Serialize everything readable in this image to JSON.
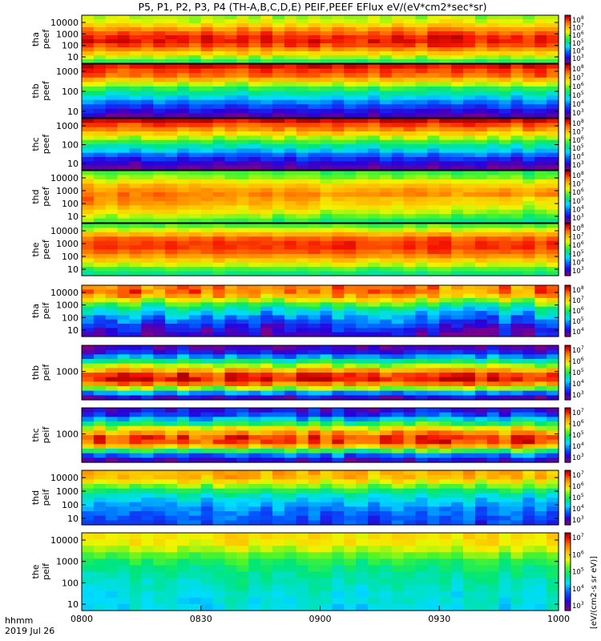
{
  "title": "P5, P1, P2, P3, P4 (TH-A,B,C,D,E) PEIF,PEEF EFlux eV/(eV*cm2*sec*sr)",
  "time_axis": {
    "hhmm_label": "hhmm",
    "date_label": "2019 Jul 26",
    "ticks": [
      "0800",
      "0830",
      "0900",
      "0930",
      "1000"
    ]
  },
  "colorbar_label": "[eV/(cm2-s sr eV)]",
  "chart_data": {
    "type": "heatmap",
    "x_range": [
      "0800",
      "1000"
    ],
    "panels": [
      {
        "ylabel": [
          "tha",
          "peef"
        ],
        "yticks": [
          "10000",
          "1000",
          "100",
          "10"
        ],
        "cb_exp": [
          3,
          4,
          5,
          6,
          7,
          8
        ],
        "profile": [
          0.62,
          0.66,
          0.74,
          0.84,
          0.9,
          0.96,
          0.93,
          0.85,
          0.74,
          0.62,
          0.52
        ],
        "t_amp": 0.05,
        "seed": 11
      },
      {
        "ylabel": [
          "thb",
          "peef"
        ],
        "yticks": [
          "1000",
          "100",
          "10"
        ],
        "cb_exp": [
          3,
          4,
          5,
          6,
          7,
          8
        ],
        "profile": [
          0.96,
          0.9,
          0.86,
          0.72,
          0.58,
          0.46,
          0.38,
          0.28,
          0.2,
          0.12,
          0.06
        ],
        "t_amp": 0.05,
        "seed": 23
      },
      {
        "ylabel": [
          "thc",
          "peef"
        ],
        "yticks": [
          "1000",
          "100",
          "10"
        ],
        "cb_exp": [
          3,
          4,
          5,
          6,
          7,
          8
        ],
        "profile": [
          0.97,
          0.88,
          0.8,
          0.68,
          0.57,
          0.46,
          0.36,
          0.24,
          0.16,
          0.08,
          0.02
        ],
        "t_amp": 0.06,
        "seed": 37
      },
      {
        "ylabel": [
          "thd",
          "peef"
        ],
        "yticks": [
          "10000",
          "1000",
          "100",
          "10"
        ],
        "cb_exp": [
          3,
          4,
          5,
          6,
          7,
          8
        ],
        "profile": [
          0.55,
          0.6,
          0.7,
          0.78,
          0.82,
          0.84,
          0.82,
          0.78,
          0.72,
          0.64,
          0.56
        ],
        "t_amp": 0.05,
        "seed": 41,
        "trend": -0.14
      },
      {
        "ylabel": [
          "the",
          "peef"
        ],
        "yticks": [
          "10000",
          "1000",
          "100",
          "10"
        ],
        "cb_exp": [
          3,
          4,
          5,
          6,
          7,
          8
        ],
        "profile": [
          0.55,
          0.66,
          0.8,
          0.9,
          0.92,
          0.9,
          0.84,
          0.76,
          0.66,
          0.55,
          0.46
        ],
        "t_amp": 0.04,
        "seed": 53
      },
      {
        "ylabel": [
          "tha",
          "peif"
        ],
        "yticks": [
          "10000",
          "1000",
          "100",
          "10"
        ],
        "cb_exp": [
          4,
          5,
          6,
          7,
          8
        ],
        "profile": [
          0.82,
          0.84,
          0.74,
          0.6,
          0.46,
          0.36,
          0.28,
          0.22,
          0.16,
          0.1,
          0.06
        ],
        "t_amp": 0.1,
        "seed": 61
      },
      {
        "ylabel": [
          "thb",
          "peif"
        ],
        "yticks": [
          "1000"
        ],
        "cb_exp": [
          3,
          4,
          5,
          6,
          7
        ],
        "profile": [
          0.06,
          0.14,
          0.3,
          0.5,
          0.7,
          0.86,
          0.98,
          0.9,
          0.68,
          0.3,
          0.1
        ],
        "t_amp": 0.08,
        "seed": 71
      },
      {
        "ylabel": [
          "thc",
          "peif"
        ],
        "yticks": [
          "1000"
        ],
        "cb_exp": [
          3,
          4,
          5,
          6,
          7
        ],
        "profile": [
          0.12,
          0.2,
          0.36,
          0.56,
          0.74,
          0.88,
          0.94,
          0.84,
          0.56,
          0.26,
          0.1
        ],
        "t_amp": 0.09,
        "seed": 83
      },
      {
        "ylabel": [
          "thd",
          "peif"
        ],
        "yticks": [
          "10000",
          "1000",
          "100",
          "10"
        ],
        "cb_exp": [
          3,
          4,
          5,
          6,
          7
        ],
        "profile": [
          0.76,
          0.74,
          0.66,
          0.54,
          0.42,
          0.34,
          0.3,
          0.26,
          0.22,
          0.2,
          0.18
        ],
        "t_amp": 0.07,
        "seed": 97
      },
      {
        "ylabel": [
          "the",
          "peif"
        ],
        "yticks": [
          "10000",
          "1000",
          "100",
          "10"
        ],
        "cb_exp": [
          3,
          4,
          5,
          6,
          7
        ],
        "profile": [
          0.7,
          0.68,
          0.62,
          0.54,
          0.48,
          0.44,
          0.42,
          0.4,
          0.38,
          0.37,
          0.36
        ],
        "t_amp": 0.05,
        "seed": 101
      }
    ]
  }
}
